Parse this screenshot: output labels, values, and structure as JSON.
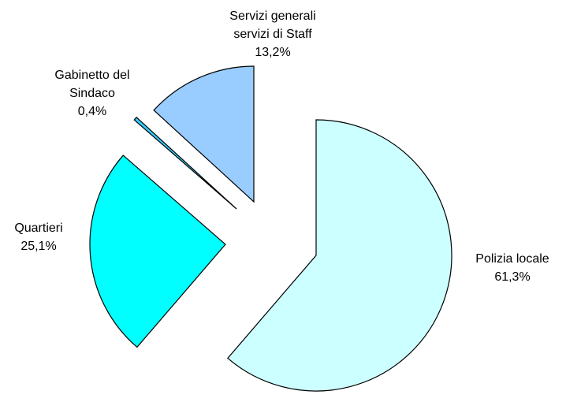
{
  "chart_data": {
    "type": "pie",
    "title": "",
    "slices": [
      {
        "label_lines": [
          "Polizia locale"
        ],
        "value_label": "61,3%",
        "value": 61.3,
        "color": "#ccffff",
        "exploded": true
      },
      {
        "label_lines": [
          "Quartieri"
        ],
        "value_label": "25,1%",
        "value": 25.1,
        "color": "#00ffff",
        "exploded": true
      },
      {
        "label_lines": [
          "Gabinetto del",
          "Sindaco"
        ],
        "value_label": "0,4%",
        "value": 0.4,
        "color": "#33ccff",
        "exploded": true
      },
      {
        "label_lines": [
          "Servizi generali",
          "servizi di Staff"
        ],
        "value_label": "13,2%",
        "value": 13.2,
        "color": "#99ccff",
        "exploded": true
      }
    ],
    "start_angle_deg": 0,
    "direction": "clockwise",
    "legend": "none"
  }
}
